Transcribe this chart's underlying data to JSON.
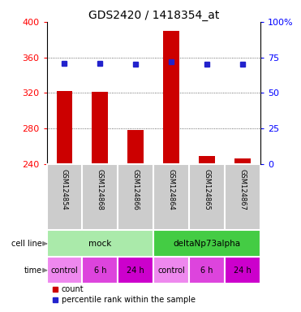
{
  "title": "GDS2420 / 1418354_at",
  "samples": [
    "GSM124854",
    "GSM124868",
    "GSM124866",
    "GSM124864",
    "GSM124865",
    "GSM124867"
  ],
  "counts": [
    322,
    321,
    278,
    390,
    249,
    246
  ],
  "percentile_ranks": [
    71,
    71,
    70,
    72,
    70,
    70
  ],
  "bar_base": 240,
  "ylim_left": [
    240,
    400
  ],
  "ylim_right": [
    0,
    100
  ],
  "yticks_left": [
    240,
    280,
    320,
    360,
    400
  ],
  "yticks_right": [
    0,
    25,
    50,
    75,
    100
  ],
  "ytick_labels_right": [
    "0",
    "25",
    "50",
    "75",
    "100%"
  ],
  "bar_color": "#cc0000",
  "dot_color": "#2222cc",
  "cell_line_groups": [
    {
      "label": "mock",
      "start": 0,
      "end": 3,
      "color": "#aaeaaa"
    },
    {
      "label": "deltaNp73alpha",
      "start": 3,
      "end": 6,
      "color": "#44cc44"
    }
  ],
  "time_colors": {
    "control": "#ee88ee",
    "6 h": "#dd44dd",
    "24 h": "#cc00cc"
  },
  "time_groups": [
    {
      "label": "control",
      "start": 0,
      "end": 1
    },
    {
      "label": "6 h",
      "start": 1,
      "end": 2
    },
    {
      "label": "24 h",
      "start": 2,
      "end": 3
    },
    {
      "label": "control",
      "start": 3,
      "end": 4
    },
    {
      "label": "6 h",
      "start": 4,
      "end": 5
    },
    {
      "label": "24 h",
      "start": 5,
      "end": 6
    }
  ],
  "legend_count_label": "count",
  "legend_percentile_label": "percentile rank within the sample",
  "background_color": "#ffffff",
  "sample_bg_color": "#cccccc"
}
